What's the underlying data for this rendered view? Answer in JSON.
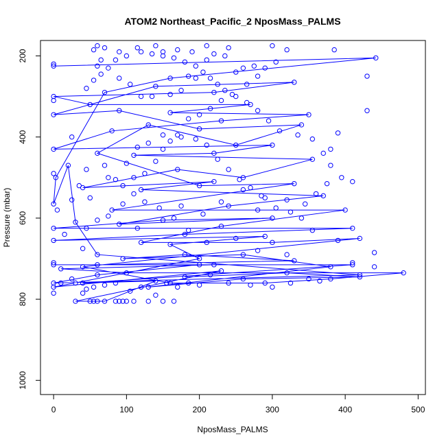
{
  "chart_data": {
    "type": "scatter",
    "title": "ATOM2 Northeast_Pacific_2 NposMass_PALMS",
    "xlabel": "NposMass_PALMS",
    "ylabel": "Pressure (mbar)",
    "xlim": [
      -18,
      510
    ],
    "ylim": [
      1035,
      162
    ],
    "y_reversed": true,
    "x_ticks": [
      0,
      100,
      200,
      300,
      400,
      500
    ],
    "y_ticks": [
      200,
      400,
      600,
      800,
      1000
    ],
    "grid": false,
    "legend": "none",
    "color": "#0000ff",
    "marker": "open-circle",
    "series": [
      {
        "style": "line+points",
        "points": [
          [
            0,
            225
          ],
          [
            442,
            205
          ],
          [
            160,
            255
          ],
          [
            70,
            290
          ],
          [
            3,
            500
          ],
          [
            0,
            565
          ],
          [
            20,
            470
          ],
          [
            30,
            610
          ],
          [
            60,
            690
          ],
          [
            420,
            740
          ],
          [
            0,
            760
          ],
          [
            60,
            740
          ],
          [
            200,
            715
          ],
          [
            0,
            715
          ],
          [
            410,
            715
          ],
          [
            40,
            760
          ],
          [
            140,
            755
          ],
          [
            70,
            805
          ],
          [
            30,
            805
          ],
          [
            230,
            730
          ],
          [
            0,
            770
          ],
          [
            200,
            700
          ],
          [
            160,
            665
          ],
          [
            290,
            645
          ],
          [
            0,
            655
          ],
          [
            180,
            640
          ],
          [
            410,
            625
          ],
          [
            0,
            625
          ],
          [
            150,
            605
          ],
          [
            300,
            600
          ],
          [
            90,
            615
          ],
          [
            240,
            570
          ],
          [
            370,
            545
          ],
          [
            120,
            530
          ],
          [
            220,
            510
          ],
          [
            40,
            525
          ],
          [
            170,
            480
          ],
          [
            260,
            500
          ],
          [
            355,
            455
          ],
          [
            110,
            445
          ],
          [
            220,
            440
          ],
          [
            300,
            420
          ],
          [
            0,
            430
          ],
          [
            80,
            385
          ],
          [
            230,
            360
          ],
          [
            350,
            345
          ],
          [
            160,
            340
          ],
          [
            270,
            320
          ],
          [
            50,
            320
          ],
          [
            0,
            300
          ],
          [
            220,
            290
          ],
          [
            330,
            265
          ],
          [
            140,
            275
          ],
          [
            0,
            345
          ],
          [
            90,
            335
          ],
          [
            200,
            380
          ],
          [
            340,
            370
          ],
          [
            250,
            420
          ],
          [
            130,
            370
          ],
          [
            60,
            440
          ],
          [
            200,
            520
          ],
          [
            330,
            515
          ],
          [
            80,
            580
          ],
          [
            280,
            580
          ],
          [
            400,
            580
          ],
          [
            230,
            620
          ],
          [
            120,
            660
          ],
          [
            300,
            660
          ],
          [
            420,
            650
          ],
          [
            40,
            720
          ],
          [
            160,
            760
          ],
          [
            290,
            760
          ],
          [
            380,
            750
          ],
          [
            480,
            735
          ],
          [
            100,
            735
          ],
          [
            10,
            725
          ],
          [
            220,
            715
          ],
          [
            60,
            715
          ],
          [
            330,
            705
          ],
          [
            180,
            690
          ],
          [
            95,
            700
          ],
          [
            260,
            690
          ],
          [
            380,
            720
          ],
          [
            130,
            770
          ],
          [
            260,
            750
          ],
          [
            420,
            745
          ],
          [
            320,
            735
          ],
          [
            180,
            745
          ]
        ]
      }
    ],
    "extra_points": [
      [
        0,
        220
      ],
      [
        0,
        310
      ],
      [
        0,
        490
      ],
      [
        5,
        580
      ],
      [
        25,
        400
      ],
      [
        0,
        710
      ],
      [
        0,
        785
      ],
      [
        25,
        750
      ],
      [
        40,
        785
      ],
      [
        50,
        805
      ],
      [
        55,
        805
      ],
      [
        60,
        805
      ],
      [
        85,
        805
      ],
      [
        90,
        805
      ],
      [
        95,
        805
      ],
      [
        100,
        805
      ],
      [
        110,
        805
      ],
      [
        130,
        805
      ],
      [
        150,
        805
      ],
      [
        165,
        805
      ],
      [
        10,
        760
      ],
      [
        30,
        760
      ],
      [
        45,
        775
      ],
      [
        55,
        770
      ],
      [
        70,
        765
      ],
      [
        85,
        760
      ],
      [
        105,
        780
      ],
      [
        120,
        770
      ],
      [
        140,
        790
      ],
      [
        155,
        760
      ],
      [
        170,
        770
      ],
      [
        185,
        760
      ],
      [
        200,
        765
      ],
      [
        215,
        740
      ],
      [
        240,
        760
      ],
      [
        270,
        765
      ],
      [
        300,
        770
      ],
      [
        325,
        760
      ],
      [
        350,
        750
      ],
      [
        365,
        755
      ],
      [
        440,
        720
      ],
      [
        440,
        685
      ],
      [
        410,
        710
      ],
      [
        390,
        655
      ],
      [
        355,
        630
      ],
      [
        320,
        690
      ],
      [
        280,
        680
      ],
      [
        250,
        650
      ],
      [
        210,
        660
      ],
      [
        185,
        630
      ],
      [
        165,
        600
      ],
      [
        145,
        575
      ],
      [
        125,
        560
      ],
      [
        110,
        540
      ],
      [
        95,
        565
      ],
      [
        75,
        595
      ],
      [
        45,
        625
      ],
      [
        40,
        675
      ],
      [
        15,
        640
      ],
      [
        60,
        605
      ],
      [
        115,
        625
      ],
      [
        175,
        570
      ],
      [
        205,
        590
      ],
      [
        230,
        560
      ],
      [
        260,
        530
      ],
      [
        290,
        550
      ],
      [
        320,
        555
      ],
      [
        340,
        600
      ],
      [
        380,
        470
      ],
      [
        370,
        440
      ],
      [
        390,
        390
      ],
      [
        430,
        335
      ],
      [
        430,
        250
      ],
      [
        385,
        185
      ],
      [
        300,
        175
      ],
      [
        240,
        180
      ],
      [
        210,
        175
      ],
      [
        190,
        190
      ],
      [
        170,
        185
      ],
      [
        150,
        190
      ],
      [
        140,
        175
      ],
      [
        115,
        180
      ],
      [
        90,
        190
      ],
      [
        70,
        180
      ],
      [
        60,
        175
      ],
      [
        55,
        185
      ],
      [
        65,
        210
      ],
      [
        60,
        225
      ],
      [
        90,
        255
      ],
      [
        105,
        270
      ],
      [
        120,
        300
      ],
      [
        135,
        300
      ],
      [
        160,
        295
      ],
      [
        175,
        285
      ],
      [
        185,
        250
      ],
      [
        195,
        255
      ],
      [
        210,
        210
      ],
      [
        220,
        195
      ],
      [
        235,
        200
      ],
      [
        250,
        240
      ],
      [
        265,
        270
      ],
      [
        280,
        250
      ],
      [
        290,
        230
      ],
      [
        305,
        215
      ],
      [
        320,
        185
      ],
      [
        275,
        225
      ],
      [
        260,
        230
      ],
      [
        245,
        295
      ],
      [
        230,
        310
      ],
      [
        215,
        330
      ],
      [
        200,
        345
      ],
      [
        185,
        355
      ],
      [
        170,
        395
      ],
      [
        160,
        410
      ],
      [
        150,
        430
      ],
      [
        140,
        460
      ],
      [
        125,
        490
      ],
      [
        110,
        500
      ],
      [
        95,
        520
      ],
      [
        85,
        505
      ],
      [
        70,
        470
      ],
      [
        45,
        480
      ],
      [
        35,
        520
      ],
      [
        25,
        555
      ],
      [
        50,
        550
      ],
      [
        75,
        500
      ],
      [
        100,
        465
      ],
      [
        115,
        425
      ],
      [
        130,
        415
      ],
      [
        150,
        395
      ],
      [
        175,
        400
      ],
      [
        195,
        405
      ],
      [
        210,
        420
      ],
      [
        225,
        455
      ],
      [
        240,
        480
      ],
      [
        255,
        505
      ],
      [
        270,
        525
      ],
      [
        285,
        545
      ],
      [
        305,
        575
      ],
      [
        325,
        585
      ],
      [
        345,
        565
      ],
      [
        360,
        540
      ],
      [
        375,
        515
      ],
      [
        395,
        500
      ],
      [
        410,
        510
      ],
      [
        380,
        430
      ],
      [
        355,
        405
      ],
      [
        335,
        395
      ],
      [
        310,
        385
      ],
      [
        295,
        360
      ],
      [
        280,
        335
      ],
      [
        265,
        315
      ],
      [
        250,
        300
      ],
      [
        235,
        285
      ],
      [
        225,
        270
      ],
      [
        215,
        255
      ],
      [
        205,
        240
      ],
      [
        195,
        225
      ],
      [
        180,
        215
      ],
      [
        165,
        205
      ],
      [
        150,
        200
      ],
      [
        135,
        195
      ],
      [
        120,
        190
      ],
      [
        100,
        200
      ],
      [
        85,
        210
      ],
      [
        75,
        230
      ],
      [
        65,
        245
      ],
      [
        55,
        260
      ],
      [
        45,
        280
      ]
    ]
  }
}
